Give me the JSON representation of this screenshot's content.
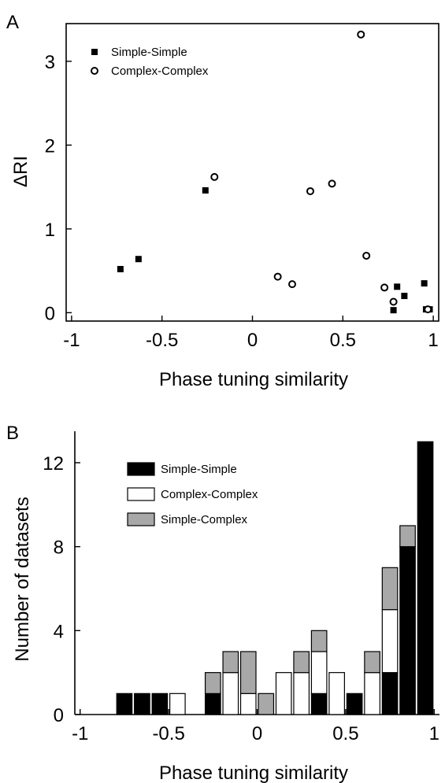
{
  "chart_data": [
    {
      "panel": "A",
      "type": "scatter",
      "xlabel": "Phase tuning similarity",
      "ylabel": "ΔRI",
      "xlim": [
        -1.03,
        1.03
      ],
      "ylim": [
        -0.1,
        3.45
      ],
      "xticks": [
        -1,
        -0.5,
        0,
        0.5,
        1
      ],
      "xtick_labels": [
        "-1",
        "-0.5",
        "0",
        "0.5",
        "1"
      ],
      "yticks": [
        0,
        1,
        2,
        3
      ],
      "ytick_labels": [
        "0",
        "1",
        "2",
        "3"
      ],
      "legend_position": "top-left",
      "series": [
        {
          "name": "Simple-Simple",
          "marker": "filled-square",
          "color": "#000000",
          "points": [
            [
              -0.73,
              0.52
            ],
            [
              -0.63,
              0.64
            ],
            [
              -0.26,
              1.46
            ],
            [
              0.78,
              0.03
            ],
            [
              0.8,
              0.31
            ],
            [
              0.84,
              0.2
            ],
            [
              0.95,
              0.35
            ],
            [
              0.96,
              0.04
            ],
            [
              0.98,
              0.04
            ]
          ]
        },
        {
          "name": "Complex-Complex",
          "marker": "open-circle",
          "color": "#000000",
          "points": [
            [
              -0.21,
              1.62
            ],
            [
              0.14,
              0.43
            ],
            [
              0.22,
              0.34
            ],
            [
              0.32,
              1.45
            ],
            [
              0.44,
              1.54
            ],
            [
              0.6,
              3.32
            ],
            [
              0.63,
              0.68
            ],
            [
              0.73,
              0.3
            ],
            [
              0.78,
              0.13
            ],
            [
              0.97,
              0.04
            ]
          ]
        }
      ]
    },
    {
      "panel": "B",
      "type": "bar",
      "stacked": true,
      "xlabel": "Phase tuning similarity",
      "ylabel": "Number of datasets",
      "xlim": [
        -1,
        1
      ],
      "ylim": [
        0,
        13.5
      ],
      "bin_width": 0.1,
      "xticks": [
        -1,
        -0.5,
        0,
        0.5,
        1
      ],
      "xtick_labels": [
        "-1",
        "-0.5",
        "0",
        "0.5",
        "1"
      ],
      "yticks": [
        0,
        4,
        8,
        12
      ],
      "ytick_labels": [
        "0",
        "4",
        "8",
        "12"
      ],
      "legend_position": "top-left",
      "bin_centers": [
        -0.75,
        -0.65,
        -0.55,
        -0.45,
        -0.25,
        -0.15,
        -0.05,
        0.05,
        0.15,
        0.25,
        0.35,
        0.45,
        0.55,
        0.65,
        0.75,
        0.85,
        0.95
      ],
      "series": [
        {
          "name": "Simple-Simple",
          "fill": "#000000",
          "values": [
            1,
            1,
            1,
            0,
            1,
            0,
            0,
            0,
            0,
            0,
            1,
            0,
            1,
            0,
            2,
            8,
            13
          ]
        },
        {
          "name": "Complex-Complex",
          "fill": "#ffffff",
          "values": [
            0,
            0,
            0,
            1,
            0,
            2,
            1,
            0,
            2,
            2,
            2,
            2,
            0,
            2,
            3,
            0,
            0
          ]
        },
        {
          "name": "Simple-Complex",
          "fill": "#a8a8a8",
          "values": [
            0,
            0,
            0,
            0,
            1,
            1,
            2,
            1,
            0,
            1,
            1,
            0,
            0,
            1,
            2,
            1,
            0
          ]
        }
      ]
    }
  ]
}
